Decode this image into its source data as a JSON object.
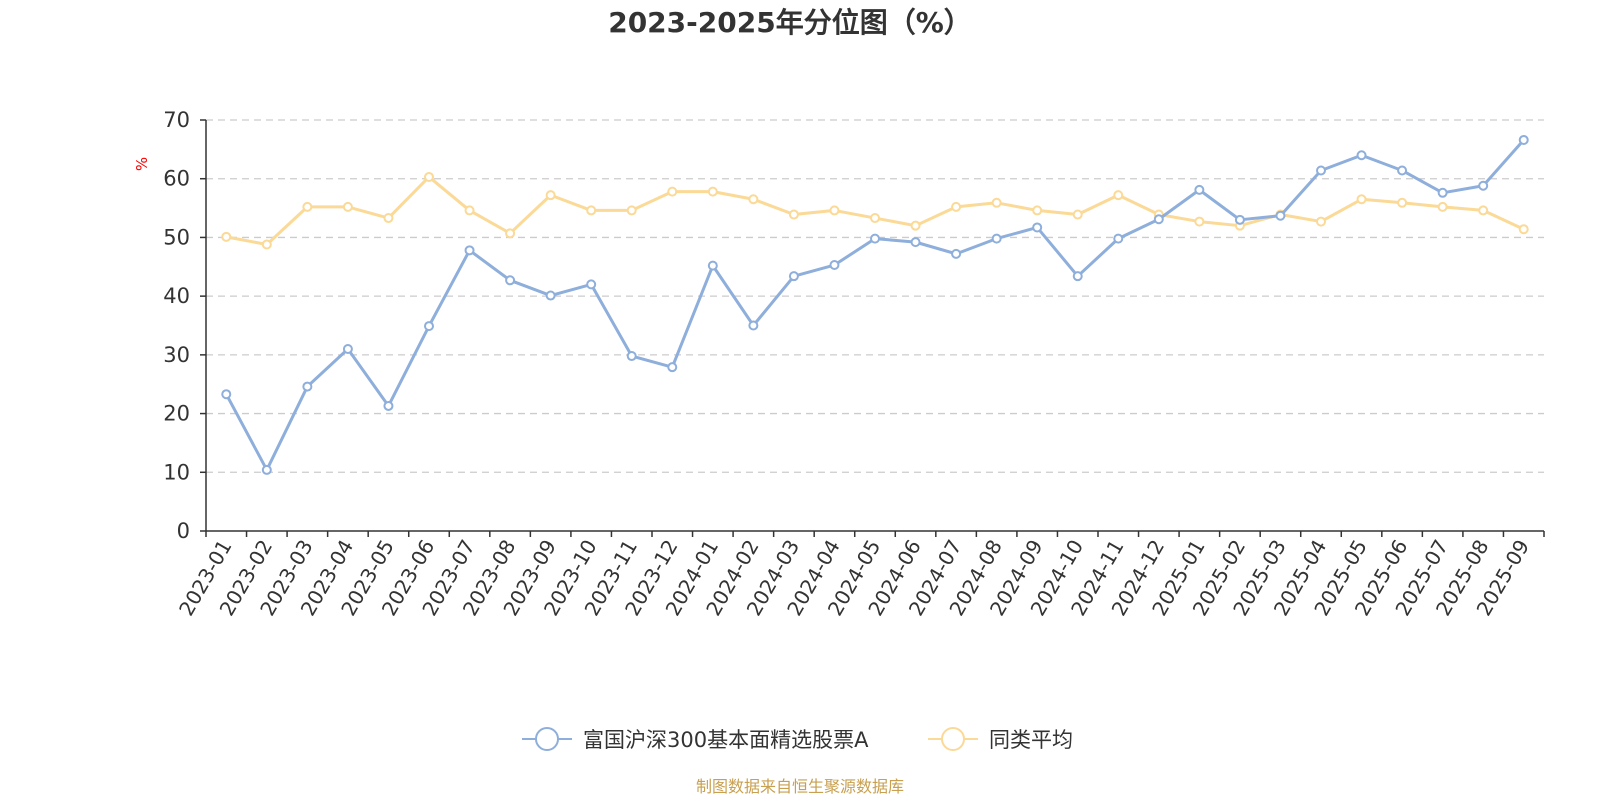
{
  "chart_data": {
    "type": "line",
    "title": "2023-2025年分位图（%）",
    "ylabel": "%",
    "ylim": [
      0,
      70
    ],
    "yticks": [
      0,
      10,
      20,
      30,
      40,
      50,
      60,
      70
    ],
    "grid": true,
    "legend_position": "bottom-center",
    "categories": [
      "2023-01",
      "2023-02",
      "2023-03",
      "2023-04",
      "2023-05",
      "2023-06",
      "2023-07",
      "2023-08",
      "2023-09",
      "2023-10",
      "2023-11",
      "2023-12",
      "2024-01",
      "2024-02",
      "2024-03",
      "2024-04",
      "2024-05",
      "2024-06",
      "2024-07",
      "2024-08",
      "2024-09",
      "2024-10",
      "2024-11",
      "2024-12",
      "2025-01",
      "2025-02",
      "2025-03",
      "2025-04",
      "2025-05",
      "2025-06",
      "2025-07",
      "2025-08",
      "2025-09"
    ],
    "series": [
      {
        "name": "富国沪深300基本面精选股票A",
        "color": "#8eaedb",
        "values": [
          23.3,
          10.4,
          24.6,
          31.0,
          21.3,
          34.9,
          47.8,
          42.7,
          40.1,
          42.0,
          29.8,
          27.9,
          45.2,
          35.0,
          43.4,
          45.3,
          49.8,
          49.2,
          47.2,
          49.8,
          51.7,
          43.4,
          49.8,
          53.1,
          58.1,
          53.0,
          53.7,
          61.4,
          64.0,
          61.4,
          57.6,
          58.8,
          66.6
        ]
      },
      {
        "name": "同类平均",
        "color": "#fbd996",
        "values": [
          50.1,
          48.8,
          55.2,
          55.2,
          53.3,
          60.3,
          54.6,
          50.7,
          57.2,
          54.6,
          54.6,
          57.8,
          57.8,
          56.5,
          53.9,
          54.6,
          53.3,
          52.0,
          55.2,
          55.9,
          54.6,
          53.9,
          57.2,
          53.9,
          52.7,
          52.0,
          53.9,
          52.7,
          56.5,
          55.9,
          55.2,
          54.6,
          51.4
        ]
      }
    ]
  },
  "source_text": "制图数据来自恒生聚源数据库",
  "colors": {
    "axis": "#333333",
    "grid": "#cccccc",
    "unit_label": "#ff0000",
    "source": "#c8a050"
  }
}
